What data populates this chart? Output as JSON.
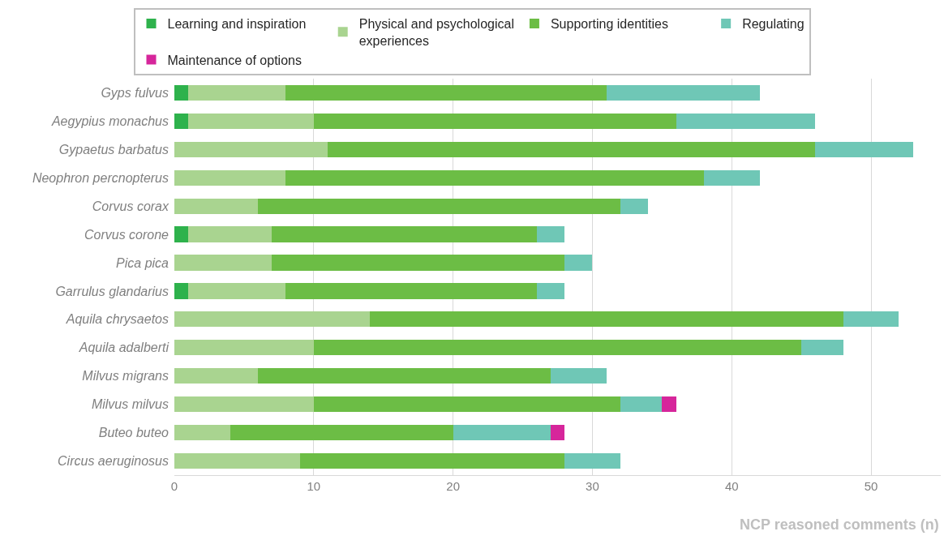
{
  "chart_data": {
    "type": "bar",
    "orientation": "horizontal",
    "stacked": true,
    "xlabel": "NCP reasoned comments (n)",
    "categories": [
      "Gyps fulvus",
      "Aegypius monachus",
      "Gypaetus barbatus",
      "Neophron percnopterus",
      "Corvus corax",
      "Corvus corone",
      "Pica pica",
      "Garrulus glandarius",
      "Aquila chrysaetos",
      "Aquila adalberti",
      "Milvus migrans",
      "Milvus milvus",
      "Buteo buteo",
      "Circus aeruginosus"
    ],
    "series": [
      {
        "name": "Learning and inspiration",
        "color": "#2eb24c",
        "values": [
          1,
          1,
          null,
          null,
          null,
          1,
          null,
          1,
          null,
          null,
          null,
          null,
          null,
          null
        ]
      },
      {
        "name": "Physical and psychological\nexperiences",
        "color": "#a9d490",
        "values": [
          7,
          9,
          11,
          8,
          6,
          6,
          7,
          7,
          14,
          10,
          6,
          10,
          4,
          9
        ]
      },
      {
        "name": "Supporting identities",
        "color": "#6cbd45",
        "values": [
          23,
          26,
          35,
          30,
          26,
          19,
          21,
          18,
          34,
          35,
          21,
          22,
          16,
          19
        ]
      },
      {
        "name": "Regulating",
        "color": "#6fc7b6",
        "values": [
          11,
          10,
          7,
          4,
          2,
          2,
          2,
          2,
          4,
          3,
          4,
          3,
          7,
          4
        ]
      },
      {
        "name": "Maintenance of options",
        "color": "#d6269b",
        "values": [
          null,
          null,
          null,
          null,
          null,
          null,
          null,
          null,
          null,
          null,
          null,
          1,
          1,
          null
        ]
      }
    ],
    "xlim": [
      0,
      55
    ],
    "xticks": [
      0,
      10,
      20,
      30,
      40,
      50
    ],
    "grid": "x",
    "legend": "top"
  }
}
